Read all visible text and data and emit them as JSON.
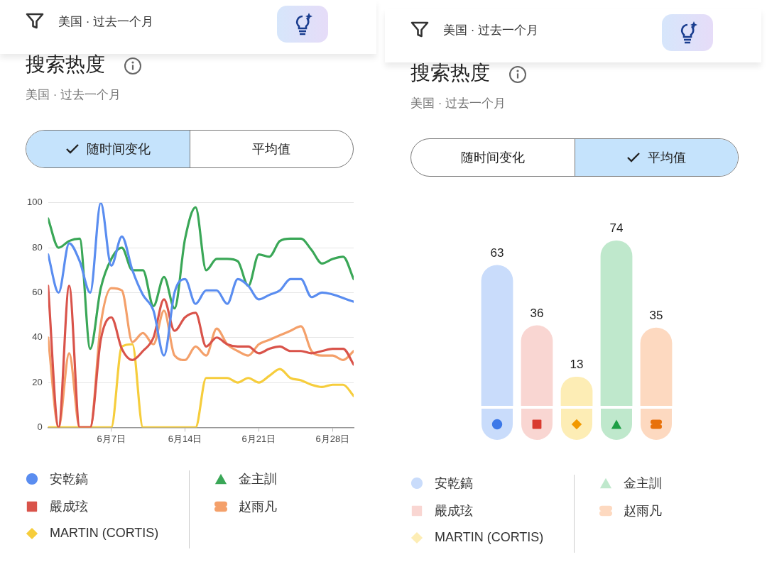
{
  "chart_data": [
    {
      "type": "line",
      "title": "搜索热度",
      "subtitle": "美国 · 过去一个月",
      "annotations": [
        "美国 · 过去一个月",
        "随时间变化",
        "平均值"
      ],
      "x": [
        "--06-01",
        "--06-02",
        "--06-03",
        "--06-04",
        "--06-05",
        "--06-06",
        "--06-07",
        "--06-08",
        "--06-09",
        "--06-10",
        "--06-11",
        "--06-12",
        "--06-13",
        "--06-14",
        "--06-15",
        "--06-16",
        "--06-17",
        "--06-18",
        "--06-19",
        "--06-20",
        "--06-21",
        "--06-22",
        "--06-23",
        "--06-24",
        "--06-25",
        "--06-26",
        "--06-27",
        "--06-28",
        "--06-29",
        "--06-30"
      ],
      "xlim": [
        "--06-01",
        "--06-30"
      ],
      "xticks": [
        {
          "value": "--06-07",
          "label": "6月7日"
        },
        {
          "value": "--06-14",
          "label": "6月14日"
        },
        {
          "value": "--06-21",
          "label": "6月21日"
        },
        {
          "value": "--06-28",
          "label": "6月28日"
        }
      ],
      "ylim": [
        0,
        100
      ],
      "yticks": [
        0,
        20,
        40,
        60,
        80,
        100
      ],
      "grid": "y",
      "legend": "bottom",
      "series": [
        {
          "name": "安乾鎬",
          "color": "#5a8df0",
          "values": [
            77,
            60,
            82,
            74,
            60,
            100,
            72,
            85,
            70,
            59,
            52,
            32,
            60,
            66,
            55,
            61,
            61,
            55,
            66,
            63,
            57,
            59,
            61,
            66,
            66,
            58,
            60,
            null,
            null,
            56
          ]
        },
        {
          "name": "嚴成玹",
          "color": "#d9534a",
          "values": [
            63,
            0,
            63,
            0,
            0,
            39,
            49,
            35,
            30,
            34,
            40,
            57,
            43,
            49,
            51,
            36,
            40,
            37,
            36,
            36,
            33,
            35,
            36,
            34,
            34,
            33,
            34,
            35,
            35,
            28
          ]
        },
        {
          "name": "MARTIN (CORTIS)",
          "color": "#f6cd3c",
          "values": [
            0,
            0,
            0,
            0,
            0,
            0,
            0,
            36,
            37,
            0,
            0,
            0,
            0,
            0,
            0,
            22,
            22,
            22,
            20,
            22,
            20,
            23,
            26,
            22,
            21,
            19,
            18,
            19,
            19,
            14
          ]
        },
        {
          "name": "金主訓",
          "color": "#3aa757",
          "values": [
            93,
            80,
            83,
            84,
            35,
            62,
            75,
            80,
            70,
            70,
            54,
            67,
            53,
            84,
            98,
            70,
            75,
            75,
            74,
            63,
            77,
            76,
            83,
            84,
            84,
            79,
            73,
            75,
            76,
            66
          ]
        },
        {
          "name": "赵雨凡",
          "color": "#f4a06a",
          "values": [
            40,
            0,
            33,
            0,
            0,
            46,
            62,
            61,
            38,
            42,
            37,
            52,
            32,
            30,
            36,
            32,
            44,
            37,
            34,
            32,
            37,
            39,
            41,
            43,
            45,
            34,
            32,
            32,
            30,
            34
          ]
        }
      ]
    },
    {
      "type": "bar",
      "title": "搜索热度",
      "subtitle": "美国 · 过去一个月",
      "annotations": [
        "美国 · 过去一个月",
        "随时间变化",
        "平均值"
      ],
      "categories": [
        null
      ],
      "data_labels": true,
      "tick_labels": false,
      "legend": "bottom",
      "series": [
        {
          "name": "安乾鎬",
          "color": "#c9dcfb",
          "values": [
            63
          ]
        },
        {
          "name": "嚴成玹",
          "color": "#f9d6d2",
          "values": [
            36
          ]
        },
        {
          "name": "MARTIN (CORTIS)",
          "color": "#fdedb5",
          "values": [
            13
          ]
        },
        {
          "name": "金主訓",
          "color": "#bfe8cc",
          "values": [
            74
          ]
        },
        {
          "name": "赵雨凡",
          "color": "#fdd9c0",
          "values": [
            35
          ]
        }
      ]
    }
  ]
}
